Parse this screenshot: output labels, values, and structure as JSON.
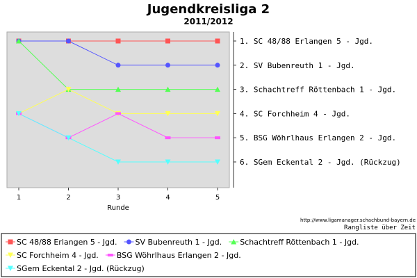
{
  "chart_data": {
    "type": "line",
    "title": "Jugendkreisliga 2",
    "subtitle": "2011/2012",
    "xlabel": "Runde",
    "ylabel": "",
    "x": [
      1,
      2,
      3,
      4,
      5
    ],
    "ylim": [
      1,
      6
    ],
    "y_inverted": true,
    "grid": false,
    "background": "#dddddd",
    "legend_position": "bottom",
    "source_url": "http://www.ligamanager.schachbund-bayern.de",
    "source_caption": "Rangliste über Zeit",
    "final_ranking": [
      "1. SC 48/88 Erlangen 5 - Jgd.",
      "2. SV Bubenreuth 1 - Jgd.",
      "3. Schachtreff Röttenbach 1 - Jgd.",
      "4. SC Forchheim 4 - Jgd.",
      "5. BSG Wöhrlhaus Erlangen 2 - Jgd.",
      "6. SGem Eckental 2 - Jgd. (Rückzug)"
    ],
    "series": [
      {
        "name": "SC 48/88 Erlangen 5 - Jgd.",
        "values": [
          1,
          1,
          1,
          1,
          1
        ],
        "color": "#ff5555",
        "marker": "square"
      },
      {
        "name": "SV Bubenreuth 1 - Jgd.",
        "values": [
          1,
          1,
          2,
          2,
          2
        ],
        "color": "#5555ff",
        "marker": "circle"
      },
      {
        "name": "Schachtreff Röttenbach 1 - Jgd.",
        "values": [
          1,
          3,
          3,
          3,
          3
        ],
        "color": "#55ff55",
        "marker": "triangle-up"
      },
      {
        "name": "SC Forchheim 4 - Jgd.",
        "values": [
          4,
          3,
          4,
          4,
          4
        ],
        "color": "#ffff55",
        "marker": "triangle-down"
      },
      {
        "name": "BSG Wöhrlhaus Erlangen 2 - Jgd.",
        "values": [
          4,
          5,
          4,
          5,
          5
        ],
        "color": "#ff55ff",
        "marker": "dash"
      },
      {
        "name": "SGem Eckental 2 - Jgd. (Rückzug)",
        "values": [
          4,
          5,
          6,
          6,
          6
        ],
        "color": "#55ffff",
        "marker": "triangle-down"
      }
    ]
  }
}
